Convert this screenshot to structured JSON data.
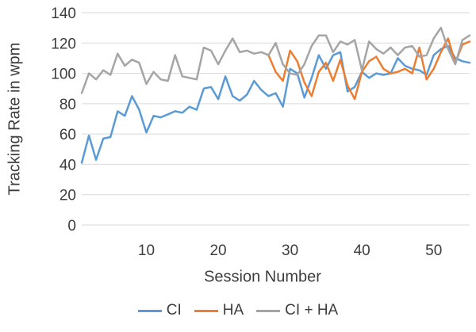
{
  "chart_data": {
    "type": "line",
    "title": "",
    "xlabel": "Session Number",
    "ylabel": "Tracking Rate in wpm",
    "xlim": [
      1,
      55
    ],
    "ylim": [
      0,
      140
    ],
    "x_ticks": [
      10,
      20,
      30,
      40,
      50
    ],
    "y_ticks": [
      0,
      20,
      40,
      60,
      80,
      100,
      120,
      140
    ],
    "grid": "horizontal",
    "gridline_color": "#d9d9d9",
    "legend_position": "bottom",
    "series": [
      {
        "name": "CI",
        "color": "#5B9BD5",
        "start_x": 1,
        "values": [
          41,
          59,
          43,
          57,
          58,
          75,
          72,
          85,
          76,
          61,
          72,
          71,
          73,
          75,
          74,
          78,
          76,
          90,
          91,
          83,
          98,
          85,
          82,
          86,
          95,
          89,
          85,
          87,
          78,
          103,
          100,
          84,
          97,
          112,
          103,
          112,
          114,
          88,
          91,
          101,
          97,
          100,
          99,
          100,
          110,
          105,
          103,
          102,
          99,
          112,
          116,
          118,
          110,
          108,
          107
        ]
      },
      {
        "name": "HA",
        "color": "#ED7D31",
        "start_x": 27,
        "values": [
          112,
          101,
          95,
          115,
          108,
          94,
          85,
          101,
          107,
          95,
          109,
          92,
          83,
          101,
          108,
          111,
          103,
          100,
          101,
          103,
          100,
          117,
          96,
          103,
          114,
          123,
          107,
          119,
          121
        ]
      },
      {
        "name": "CI + HA",
        "color": "#A5A5A5",
        "start_x": 1,
        "values": [
          87,
          100,
          96,
          102,
          99,
          113,
          105,
          109,
          107,
          93,
          101,
          96,
          95,
          112,
          98,
          97,
          96,
          117,
          115,
          106,
          115,
          123,
          114,
          115,
          113,
          114,
          112,
          120,
          106,
          100,
          99,
          106,
          118,
          125,
          125,
          114,
          121,
          119,
          122,
          102,
          121,
          116,
          113,
          117,
          112,
          117,
          118,
          111,
          112,
          123,
          130,
          116,
          106,
          122,
          125
        ]
      }
    ]
  }
}
